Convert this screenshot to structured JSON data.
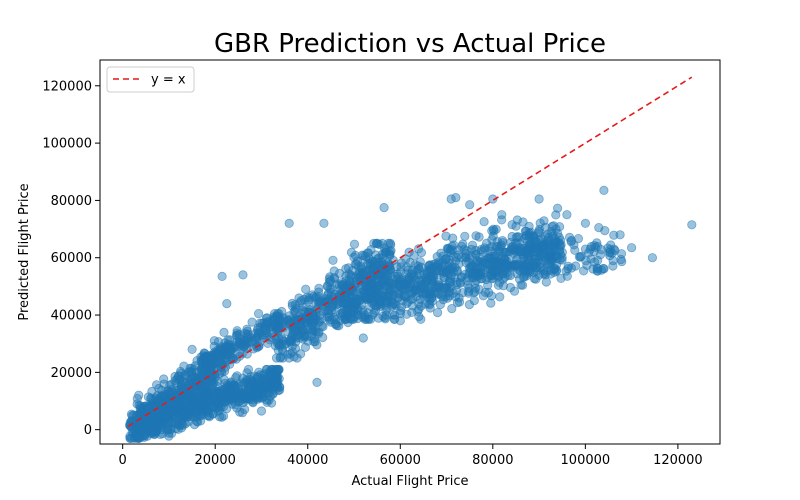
{
  "chart_data": {
    "type": "scatter",
    "title": "GBR Prediction vs Actual Price",
    "xlabel": "Actual Flight Price",
    "ylabel": "Predicted Flight Price",
    "xlim": [
      -4900,
      129100
    ],
    "ylim": [
      -5000,
      129000
    ],
    "xticks": [
      0,
      20000,
      40000,
      60000,
      80000,
      100000,
      120000
    ],
    "yticks": [
      0,
      20000,
      40000,
      60000,
      80000,
      100000,
      120000
    ],
    "xtick_labels": [
      "0",
      "20000",
      "40000",
      "60000",
      "80000",
      "100000",
      "120000"
    ],
    "ytick_labels": [
      "0",
      "20000",
      "40000",
      "60000",
      "80000",
      "100000",
      "120000"
    ],
    "grid": false,
    "legend": {
      "position": "top-left",
      "entries": [
        {
          "label": "y = x",
          "style": "dashed",
          "color": "#e41a1c"
        }
      ]
    },
    "reference_line": {
      "label": "y = x",
      "from": [
        1100,
        1100
      ],
      "to": [
        123000,
        123000
      ],
      "color": "#e41a1c",
      "style": "dashed"
    },
    "point_color": "#1f77b4",
    "point_alpha": 0.45,
    "clusters": [
      {
        "x": [
          1500,
          34000
        ],
        "y": [
          0,
          18000
        ],
        "slope": 0.48,
        "noise": 3000,
        "count": 700
      },
      {
        "x": [
          3000,
          20000
        ],
        "y": [
          1500,
          22000
        ],
        "slope": 0.85,
        "noise": 4000,
        "count": 400
      },
      {
        "x": [
          17000,
          34000
        ],
        "y": [
          22000,
          38000
        ],
        "slope": 0.55,
        "noise": 2500,
        "count": 220
      },
      {
        "x": [
          33000,
          58000
        ],
        "y": [
          30000,
          60000
        ],
        "slope": 0.55,
        "noise": 5000,
        "count": 420
      },
      {
        "x": [
          48000,
          95000
        ],
        "y": [
          44000,
          74000
        ],
        "slope": 0.22,
        "noise": 5500,
        "count": 850
      },
      {
        "x": [
          80000,
          108000
        ],
        "y": [
          56000,
          68000
        ],
        "slope": 0.1,
        "noise": 3500,
        "count": 120
      }
    ],
    "outliers": [
      [
        25000,
        14000
      ],
      [
        30000,
        6500
      ],
      [
        42000,
        16500
      ],
      [
        43500,
        72000
      ],
      [
        47000,
        38000
      ],
      [
        52000,
        32000
      ],
      [
        57000,
        40000
      ],
      [
        60000,
        38000
      ],
      [
        56500,
        77500
      ],
      [
        71000,
        80500
      ],
      [
        72000,
        81000
      ],
      [
        75000,
        78500
      ],
      [
        80000,
        80500
      ],
      [
        90000,
        80500
      ],
      [
        104000,
        83500
      ],
      [
        107500,
        68000
      ],
      [
        110000,
        63500
      ],
      [
        114500,
        60000
      ],
      [
        123000,
        71500
      ],
      [
        100000,
        72000
      ],
      [
        96000,
        75000
      ],
      [
        22500,
        44000
      ],
      [
        21500,
        53500
      ],
      [
        26000,
        54000
      ],
      [
        36000,
        72000
      ],
      [
        97000,
        66000
      ],
      [
        85000,
        71000
      ],
      [
        64000,
        42000
      ],
      [
        48000,
        44000
      ],
      [
        15000,
        28000
      ]
    ]
  }
}
